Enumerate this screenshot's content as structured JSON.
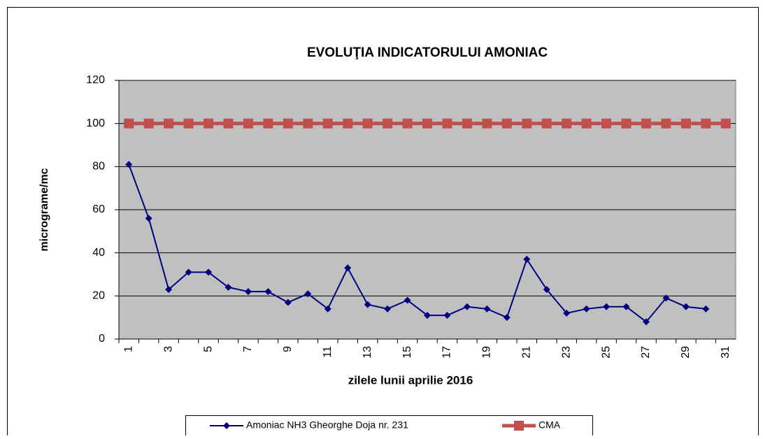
{
  "chart_data": {
    "type": "line",
    "title": "EVOLUŢIA INDICATORULUI AMONIAC",
    "x_label": "zilele lunii aprilie 2016",
    "y_label": "micrograme/mc",
    "categories": [
      "1",
      null,
      "3",
      null,
      "5",
      null,
      "7",
      null,
      "9",
      null,
      "11",
      null,
      "13",
      null,
      "15",
      null,
      "17",
      null,
      "19",
      null,
      "21",
      null,
      "23",
      null,
      "25",
      null,
      "27",
      null,
      "29",
      null,
      "31"
    ],
    "series": [
      {
        "name": "Amoniac NH3 Gheorghe Doja nr. 231",
        "color": "#000080",
        "marker": "diamond",
        "values": [
          81,
          56,
          23,
          31,
          31,
          24,
          22,
          22,
          17,
          21,
          14,
          33,
          16,
          14,
          18,
          11,
          11,
          15,
          14,
          10,
          37,
          23,
          12,
          14,
          15,
          15,
          8,
          19,
          15,
          14,
          null
        ]
      },
      {
        "name": "CMA",
        "color": "#c0504d",
        "marker": "square",
        "values": [
          100,
          100,
          100,
          100,
          100,
          100,
          100,
          100,
          100,
          100,
          100,
          100,
          100,
          100,
          100,
          100,
          100,
          100,
          100,
          100,
          100,
          100,
          100,
          100,
          100,
          100,
          100,
          100,
          100,
          100,
          100
        ]
      }
    ],
    "ylim": [
      0,
      120
    ],
    "yticks": [
      0,
      20,
      40,
      60,
      80,
      100,
      120
    ],
    "grid": true,
    "legend": "bottom"
  }
}
